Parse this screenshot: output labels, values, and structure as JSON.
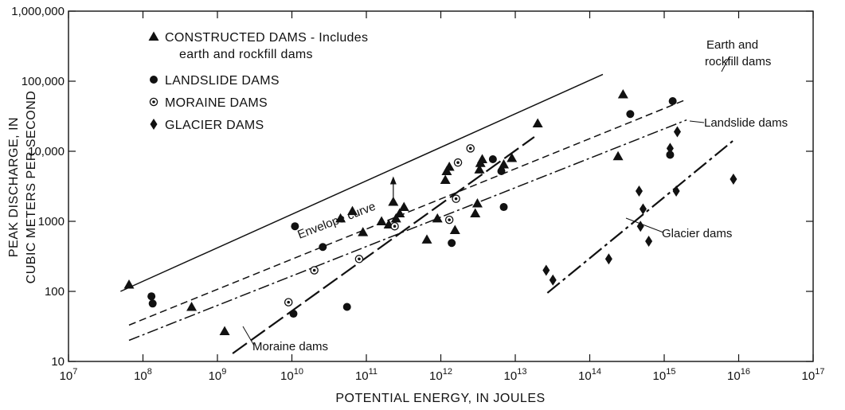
{
  "chart_data": {
    "type": "scatter",
    "xlabel": "POTENTIAL ENERGY, IN JOULES",
    "ylabel_lines": [
      "PEAK DISCHARGE, IN",
      "CUBIC METERS PER SECOND"
    ],
    "x_scale": "log",
    "y_scale": "log",
    "xlim": [
      10000000.0,
      1e+17
    ],
    "ylim": [
      10,
      1000000
    ],
    "x_ticks": [
      {
        "value": 10000000.0,
        "base": "10",
        "exp": "7"
      },
      {
        "value": 100000000.0,
        "base": "10",
        "exp": "8"
      },
      {
        "value": 1000000000.0,
        "base": "10",
        "exp": "9"
      },
      {
        "value": 10000000000.0,
        "base": "10",
        "exp": "10"
      },
      {
        "value": 100000000000.0,
        "base": "10",
        "exp": "11"
      },
      {
        "value": 1000000000000.0,
        "base": "10",
        "exp": "12"
      },
      {
        "value": 10000000000000.0,
        "base": "10",
        "exp": "13"
      },
      {
        "value": 100000000000000.0,
        "base": "10",
        "exp": "14"
      },
      {
        "value": 1000000000000000.0,
        "base": "10",
        "exp": "15"
      },
      {
        "value": 1e+16,
        "base": "10",
        "exp": "16"
      },
      {
        "value": 1e+17,
        "base": "10",
        "exp": "17"
      }
    ],
    "y_ticks": [
      {
        "value": 10,
        "label": "10"
      },
      {
        "value": 100,
        "label": "100"
      },
      {
        "value": 1000,
        "label": "1000"
      },
      {
        "value": 10000,
        "label": "10,000"
      },
      {
        "value": 100000,
        "label": "100,000"
      },
      {
        "value": 1000000,
        "label": "1,000,000"
      }
    ],
    "grid": false,
    "legend_position": "top-left",
    "legend": [
      {
        "marker": "triangle",
        "lines": [
          "CONSTRUCTED DAMS - Includes",
          "earth and rockfill dams"
        ]
      },
      {
        "marker": "circle",
        "lines": [
          "LANDSLIDE DAMS"
        ]
      },
      {
        "marker": "ring",
        "lines": [
          "MORAINE DAMS"
        ]
      },
      {
        "marker": "diamond",
        "lines": [
          "GLACIER DAMS"
        ]
      }
    ],
    "series": [
      {
        "marker": "triangle",
        "points": [
          [
            65000000.0,
            125
          ],
          [
            450000000.0,
            60
          ],
          [
            1250000000.0,
            27
          ],
          [
            45000000000.0,
            1100
          ],
          [
            65000000000.0,
            1400
          ],
          [
            90000000000.0,
            700
          ],
          [
            160000000000.0,
            1000
          ],
          [
            200000000000.0,
            900
          ],
          [
            230000000000.0,
            1900
          ],
          [
            250000000000.0,
            1100
          ],
          [
            280000000000.0,
            1300
          ],
          [
            320000000000.0,
            1600
          ],
          [
            650000000000.0,
            550
          ],
          [
            900000000000.0,
            1100
          ],
          [
            1150000000000.0,
            3900
          ],
          [
            1200000000000.0,
            5200
          ],
          [
            1300000000000.0,
            6000
          ],
          [
            1550000000000.0,
            750
          ],
          [
            2900000000000.0,
            1300
          ],
          [
            3100000000000.0,
            1800
          ],
          [
            3300000000000.0,
            5500
          ],
          [
            3400000000000.0,
            6800
          ],
          [
            3600000000000.0,
            7700
          ],
          [
            7000000000000.0,
            6500
          ],
          [
            9000000000000.0,
            8000
          ],
          [
            20000000000000.0,
            25000
          ],
          [
            240000000000000.0,
            8500
          ],
          [
            280000000000000.0,
            65000
          ]
        ],
        "arrow_points": [
          [
            230000000000.0,
            1900
          ]
        ]
      },
      {
        "marker": "circle",
        "points": [
          [
            130000000.0,
            85
          ],
          [
            135000000.0,
            67
          ],
          [
            10500000000.0,
            48
          ],
          [
            11000000000.0,
            850
          ],
          [
            26000000000.0,
            430
          ],
          [
            55000000000.0,
            60
          ],
          [
            1400000000000.0,
            490
          ],
          [
            5000000000000.0,
            7700
          ],
          [
            6500000000000.0,
            5200
          ],
          [
            7000000000000.0,
            1600
          ],
          [
            350000000000000.0,
            34000
          ],
          [
            1200000000000000.0,
            8900
          ],
          [
            1300000000000000.0,
            52000
          ]
        ]
      },
      {
        "marker": "ring",
        "points": [
          [
            9000000000.0,
            70
          ],
          [
            20000000000.0,
            200
          ],
          [
            80000000000.0,
            290
          ],
          [
            240000000000.0,
            850
          ],
          [
            1300000000000.0,
            1050
          ],
          [
            1600000000000.0,
            2100
          ],
          [
            1700000000000.0,
            6900
          ],
          [
            2500000000000.0,
            11000
          ]
        ]
      },
      {
        "marker": "diamond",
        "points": [
          [
            26000000000000.0,
            200
          ],
          [
            32000000000000.0,
            145
          ],
          [
            180000000000000.0,
            290
          ],
          [
            480000000000000.0,
            850
          ],
          [
            620000000000000.0,
            520
          ],
          [
            460000000000000.0,
            2700
          ],
          [
            520000000000000.0,
            1500
          ],
          [
            1200000000000000.0,
            11000
          ],
          [
            1450000000000000.0,
            2700
          ],
          [
            1500000000000000.0,
            19000
          ],
          [
            8500000000000000.0,
            4000
          ]
        ]
      }
    ],
    "fit_lines": [
      {
        "label": "Envelope curve",
        "style": "solid",
        "from": [
          50000000.0,
          100
        ],
        "to": [
          150000000000000.0,
          125000
        ]
      },
      {
        "label": "Earth and rockfill dams",
        "style": "dashed",
        "from": [
          65000000.0,
          33
        ],
        "to": [
          2000000000000000.0,
          55000
        ]
      },
      {
        "label": "Landslide dams",
        "style": "dash-dot",
        "from": [
          65000000.0,
          20
        ],
        "to": [
          2000000000000000.0,
          28000
        ]
      },
      {
        "label": "Moraine dams",
        "style": "long-dash",
        "from": [
          1600000000.0,
          13
        ],
        "to": [
          18000000000000.0,
          16000
        ]
      },
      {
        "label": "Glacier dams",
        "style": "dash-dot-long",
        "from": [
          27000000000000.0,
          95
        ],
        "to": [
          9000000000000000.0,
          15000
        ]
      }
    ],
    "annotations": [
      {
        "text": "Envelope curve",
        "target": [
          22000000000.0,
          1800
        ]
      },
      {
        "text": "Earth and",
        "target": [
          3000000000000000.0,
          65000
        ]
      },
      {
        "text": "rockfill dams",
        "target": [
          3000000000000000.0,
          65000
        ]
      },
      {
        "text": "Landslide dams",
        "target": [
          2800000000000000.0,
          26000
        ]
      },
      {
        "text": "Glacier dams",
        "target": [
          300000000000000.0,
          1000
        ]
      },
      {
        "text": "Moraine dams",
        "target": [
          6000000000.0,
          20
        ]
      }
    ]
  }
}
